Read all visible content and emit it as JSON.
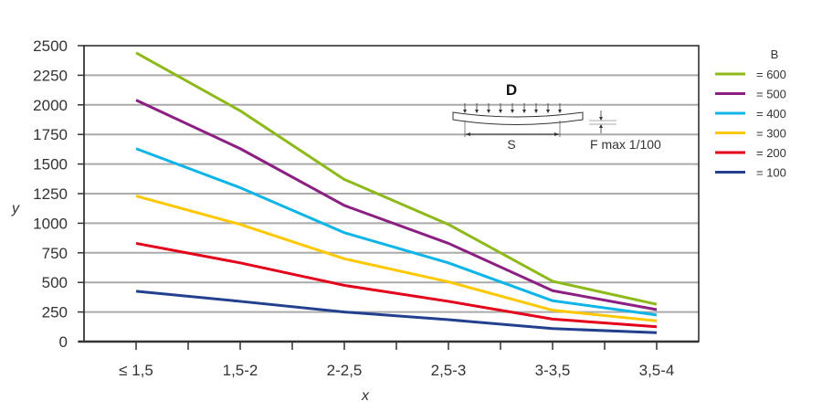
{
  "chart_data": {
    "type": "line",
    "title": "",
    "xlabel": "x",
    "ylabel": "y",
    "categories": [
      "≤ 1,5",
      "1,5-2",
      "2-2,5",
      "2,5-3",
      "3-3,5",
      "3,5-4"
    ],
    "ylim": [
      0,
      2500
    ],
    "yticks": [
      0,
      250,
      500,
      750,
      1000,
      1250,
      1500,
      1750,
      2000,
      2250,
      2500
    ],
    "grid": true,
    "legend": {
      "title": "B",
      "position": "right"
    },
    "series": [
      {
        "name": "= 600",
        "color": "#8dba1a",
        "values": [
          2440,
          1950,
          1370,
          990,
          510,
          315
        ]
      },
      {
        "name": "= 500",
        "color": "#8c1f82",
        "values": [
          2040,
          1630,
          1150,
          830,
          430,
          270
        ]
      },
      {
        "name": "= 400",
        "color": "#0fb5e6",
        "values": [
          1630,
          1300,
          920,
          665,
          345,
          225
        ]
      },
      {
        "name": "= 300",
        "color": "#ffc800",
        "values": [
          1230,
          990,
          700,
          505,
          265,
          175
        ]
      },
      {
        "name": "= 200",
        "color": "#e3001b",
        "values": [
          830,
          665,
          475,
          340,
          190,
          125
        ]
      },
      {
        "name": "= 100",
        "color": "#23408e",
        "values": [
          425,
          340,
          250,
          185,
          110,
          75
        ]
      }
    ],
    "inset": {
      "title": "D",
      "span_label": "S",
      "deflection_label": "F max 1/100"
    }
  }
}
